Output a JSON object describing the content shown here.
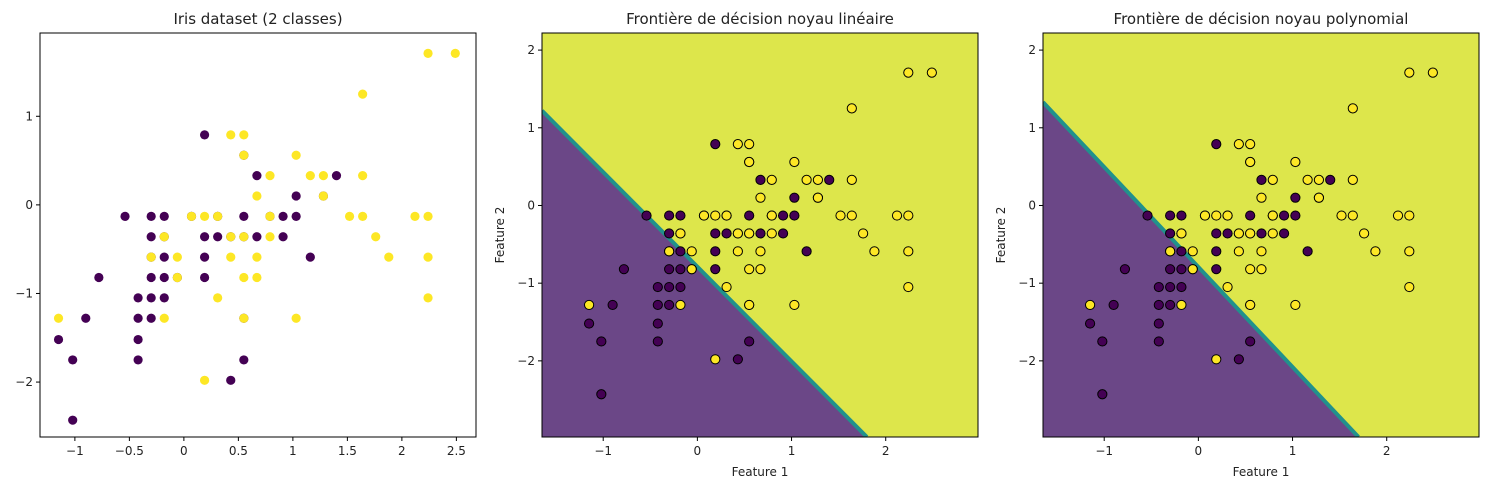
{
  "chart_data": [
    {
      "type": "scatter",
      "title": "Iris dataset (2 classes)",
      "xlabel": "",
      "ylabel": "",
      "xlim": [
        -1.32,
        2.68
      ],
      "ylim": [
        -2.62,
        1.94
      ],
      "xticks": [
        -1.0,
        -0.5,
        0.0,
        0.5,
        1.0,
        1.5,
        2.0,
        2.5
      ],
      "yticks": [
        -2,
        -1,
        0,
        1
      ],
      "decision_boundary": null,
      "marker_edge": false
    },
    {
      "type": "scatter",
      "title": "Frontière de décision noyau linéaire",
      "xlabel": "Feature 1",
      "ylabel": "Feature 2",
      "xlim": [
        -1.65,
        2.98
      ],
      "ylim": [
        -2.98,
        2.22
      ],
      "xticks": [
        -1,
        0,
        1,
        2
      ],
      "yticks": [
        -2,
        -1,
        0,
        1,
        2
      ],
      "decision_boundary": {
        "kind": "linear",
        "line": [
          [
            -1.65,
            1.22
          ],
          [
            1.8,
            -2.98
          ]
        ]
      },
      "marker_edge": true
    },
    {
      "type": "scatter",
      "title": "Frontière de décision noyau polynomial",
      "xlabel": "Feature 1",
      "ylabel": "Feature 2",
      "xlim": [
        -1.65,
        2.98
      ],
      "ylim": [
        -2.98,
        2.22
      ],
      "xticks": [
        -1,
        0,
        1,
        2
      ],
      "yticks": [
        -2,
        -1,
        0,
        1,
        2
      ],
      "decision_boundary": {
        "kind": "polynomial",
        "line": [
          [
            -1.65,
            1.33
          ],
          [
            1.7,
            -2.98
          ]
        ]
      },
      "marker_edge": true
    }
  ],
  "points": {
    "class0": [
      [
        -1.15,
        -1.52
      ],
      [
        -1.02,
        -1.75
      ],
      [
        -0.9,
        -1.28
      ],
      [
        -1.02,
        -2.43
      ],
      [
        -0.78,
        -0.82
      ],
      [
        -0.54,
        -0.13
      ],
      [
        -0.42,
        -1.28
      ],
      [
        -0.42,
        -1.52
      ],
      [
        -0.42,
        -1.75
      ],
      [
        -0.42,
        -1.05
      ],
      [
        -0.3,
        -0.13
      ],
      [
        -0.3,
        -0.36
      ],
      [
        -0.3,
        -0.59
      ],
      [
        -0.3,
        -0.82
      ],
      [
        -0.3,
        -1.05
      ],
      [
        -0.3,
        -1.28
      ],
      [
        -0.18,
        -0.13
      ],
      [
        -0.18,
        -0.36
      ],
      [
        -0.18,
        -0.59
      ],
      [
        -0.18,
        -0.82
      ],
      [
        -0.18,
        -1.05
      ],
      [
        -0.06,
        -0.82
      ],
      [
        0.07,
        -0.13
      ],
      [
        0.19,
        0.79
      ],
      [
        0.19,
        -0.36
      ],
      [
        0.19,
        -0.59
      ],
      [
        0.19,
        -0.82
      ],
      [
        0.31,
        -0.13
      ],
      [
        0.31,
        -0.36
      ],
      [
        0.43,
        -0.36
      ],
      [
        0.43,
        -1.98
      ],
      [
        0.55,
        -0.13
      ],
      [
        0.55,
        -0.36
      ],
      [
        0.55,
        -1.28
      ],
      [
        0.55,
        -1.75
      ],
      [
        0.67,
        0.33
      ],
      [
        0.67,
        -0.36
      ],
      [
        0.79,
        -0.13
      ],
      [
        0.91,
        -0.13
      ],
      [
        0.91,
        -0.36
      ],
      [
        1.03,
        -0.13
      ],
      [
        1.03,
        0.1
      ],
      [
        1.16,
        -0.59
      ],
      [
        1.28,
        0.1
      ],
      [
        1.4,
        0.33
      ],
      [
        0.55,
        0.56
      ]
    ],
    "class1": [
      [
        -1.15,
        -1.28
      ],
      [
        -0.06,
        -0.59
      ],
      [
        -0.18,
        -1.28
      ],
      [
        -0.3,
        -0.59
      ],
      [
        0.07,
        -0.13
      ],
      [
        0.19,
        -1.98
      ],
      [
        0.31,
        -1.05
      ],
      [
        0.43,
        0.79
      ],
      [
        0.43,
        -0.59
      ],
      [
        0.55,
        0.79
      ],
      [
        0.55,
        -0.82
      ],
      [
        0.55,
        -1.28
      ],
      [
        0.67,
        0.1
      ],
      [
        0.67,
        -0.59
      ],
      [
        0.67,
        -0.82
      ],
      [
        0.79,
        0.33
      ],
      [
        0.79,
        -0.36
      ],
      [
        0.55,
        0.56
      ],
      [
        1.03,
        0.56
      ],
      [
        1.03,
        -1.28
      ],
      [
        1.16,
        0.33
      ],
      [
        1.28,
        0.33
      ],
      [
        1.28,
        0.1
      ],
      [
        1.52,
        -0.13
      ],
      [
        1.64,
        1.25
      ],
      [
        1.64,
        -0.13
      ],
      [
        1.64,
        0.33
      ],
      [
        1.76,
        -0.36
      ],
      [
        1.88,
        -0.59
      ],
      [
        2.12,
        -0.13
      ],
      [
        2.24,
        1.71
      ],
      [
        2.24,
        -0.13
      ],
      [
        2.24,
        -0.59
      ],
      [
        2.24,
        -1.05
      ],
      [
        2.49,
        1.71
      ],
      [
        -0.06,
        -0.82
      ],
      [
        0.31,
        -0.13
      ],
      [
        0.43,
        -0.36
      ],
      [
        0.19,
        -0.13
      ],
      [
        -0.18,
        -0.36
      ],
      [
        0.79,
        -0.13
      ],
      [
        0.55,
        -0.36
      ]
    ]
  },
  "colors": {
    "class0": "#440154",
    "class1": "#fde725",
    "region0": "#6b4787",
    "region1": "#dde64b",
    "boundary": "#21918c",
    "edge": "#000000"
  }
}
